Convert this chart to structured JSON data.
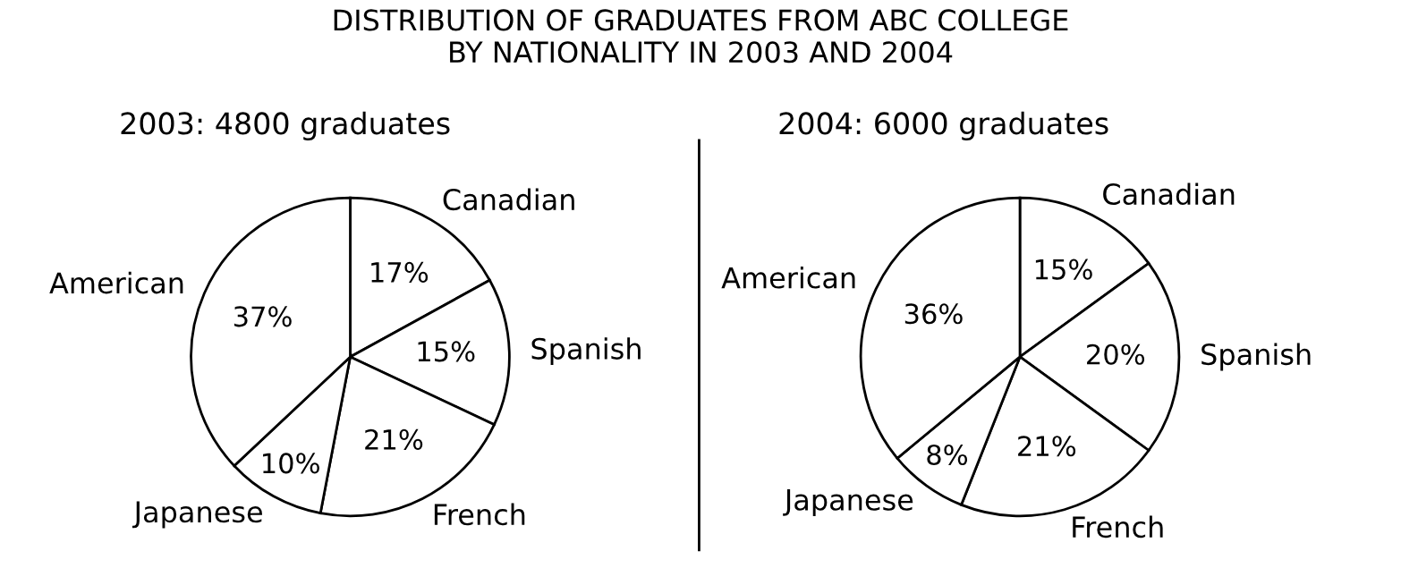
{
  "chart_data": [
    {
      "type": "pie",
      "title": "DISTRIBUTION OF GRADUATES FROM ABC COLLEGE\nBY NATIONALITY IN 2003 AND 2004",
      "subtitle": "2003: 4800 graduates",
      "categories": [
        "Canadian",
        "Spanish",
        "French",
        "Japanese",
        "American"
      ],
      "values": [
        17,
        15,
        21,
        10,
        37
      ],
      "value_labels": [
        "17%",
        "15%",
        "21%",
        "10%",
        "37%"
      ],
      "colors": [
        "#ffffff",
        "#ffffff",
        "#ffffff",
        "#ffffff",
        "#ffffff"
      ]
    },
    {
      "type": "pie",
      "subtitle": "2004: 6000 graduates",
      "categories": [
        "Canadian",
        "Spanish",
        "French",
        "Japanese",
        "American"
      ],
      "values": [
        15,
        20,
        21,
        8,
        36
      ],
      "value_labels": [
        "15%",
        "20%",
        "21%",
        "8%",
        "36%"
      ],
      "colors": [
        "#ffffff",
        "#ffffff",
        "#ffffff",
        "#ffffff",
        "#ffffff"
      ]
    }
  ]
}
